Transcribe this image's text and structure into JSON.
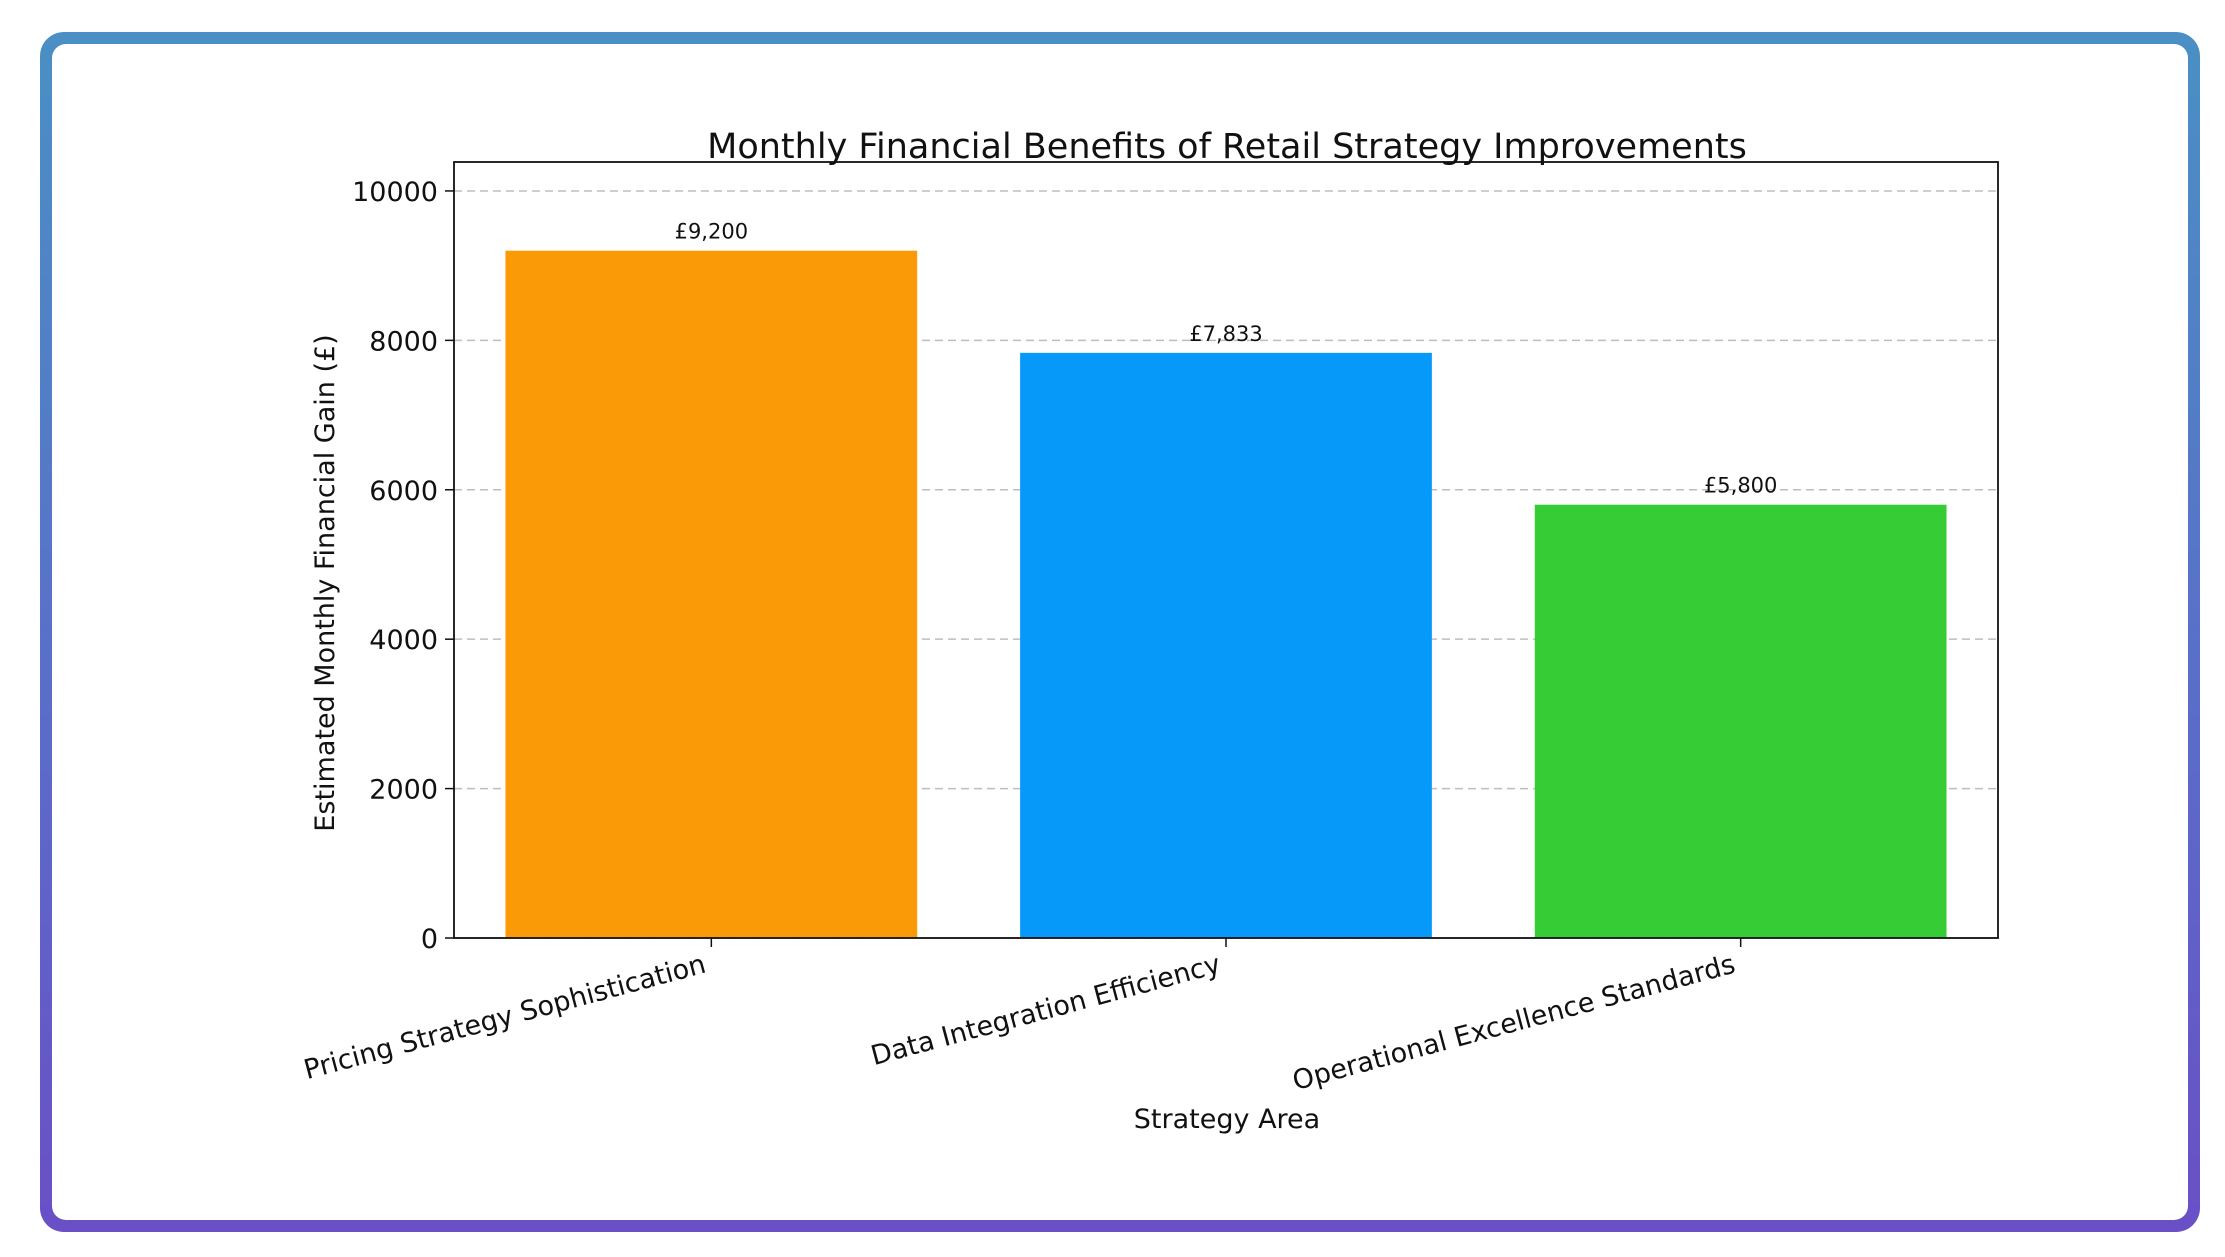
{
  "chart_data": {
    "type": "bar",
    "title": "Monthly Financial Benefits of Retail Strategy Improvements",
    "xlabel": "Strategy Area",
    "ylabel": "Estimated Monthly Financial Gain (£)",
    "ylim": [
      0,
      10200
    ],
    "yticks": [
      0,
      2000,
      4000,
      6000,
      8000,
      10000
    ],
    "ytick_labels": [
      "0",
      "2000",
      "4000",
      "6000",
      "8000",
      "10000"
    ],
    "grid": "horizontal dashed",
    "categories": [
      "Pricing Strategy Sophistication",
      "Data Integration Efficiency",
      "Operational Excellence Standards"
    ],
    "values": [
      9200,
      7833,
      5800
    ],
    "data_labels": [
      "£9,200",
      "£7,833",
      "£5,800"
    ],
    "colors": [
      "#f99a06",
      "#0699f9",
      "#36cc36"
    ]
  }
}
